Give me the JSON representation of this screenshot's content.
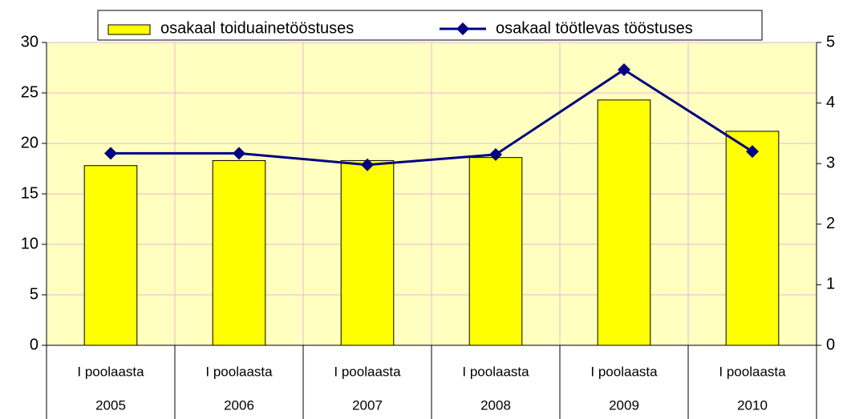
{
  "chart_data": {
    "type": "bar_line",
    "categories": [
      [
        "I poolaasta",
        "2005"
      ],
      [
        "I poolaasta",
        "2006"
      ],
      [
        "I poolaasta",
        "2007"
      ],
      [
        "I poolaasta",
        "2008"
      ],
      [
        "I poolaasta",
        "2009"
      ],
      [
        "I poolaasta",
        "2010"
      ]
    ],
    "series": [
      {
        "name": "osakaal toiduainetööstuses",
        "type": "bar",
        "color": "#ffff00",
        "values": [
          17.8,
          18.3,
          18.3,
          18.6,
          24.3,
          21.2
        ]
      },
      {
        "name": "osakaal töötlevas tööstuses",
        "type": "line",
        "axis": "y2",
        "color": "#000080",
        "values": [
          3.17,
          3.17,
          2.98,
          3.15,
          4.55,
          3.2
        ]
      }
    ],
    "ylim": [
      0,
      30
    ],
    "yticks": [
      0,
      5,
      10,
      15,
      20,
      25,
      30
    ],
    "y2lim": [
      0,
      5
    ],
    "y2ticks": [
      0,
      1,
      2,
      3,
      4,
      5
    ],
    "grid": true,
    "legend": "top",
    "plot_background": "#ffffc0",
    "grid_color": "#e8b4d8"
  }
}
